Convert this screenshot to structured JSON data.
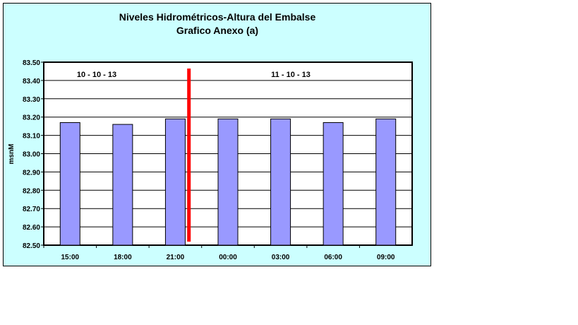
{
  "chart_data": {
    "type": "bar",
    "title": "Niveles Hidrométricos-Altura del Embalse",
    "subtitle": "Grafico Anexo (a)",
    "ylabel": "msnM",
    "xlabel": "",
    "ylim": [
      82.5,
      83.5
    ],
    "yticks": [
      "82.50",
      "82.60",
      "82.70",
      "82.80",
      "82.90",
      "83.00",
      "83.10",
      "83.20",
      "83.30",
      "83.40",
      "83.50"
    ],
    "categories": [
      "15:00",
      "18:00",
      "21:00",
      "00:00",
      "03:00",
      "06:00",
      "09:00"
    ],
    "values": [
      83.17,
      83.16,
      83.19,
      83.19,
      83.19,
      83.17,
      83.19
    ],
    "grid": true,
    "annotations": [
      "10 - 10 - 13",
      "11 - 10 - 13"
    ],
    "bar_color": "#9999ff",
    "divider_color": "#ff0000",
    "background_color": "#ccffff"
  }
}
